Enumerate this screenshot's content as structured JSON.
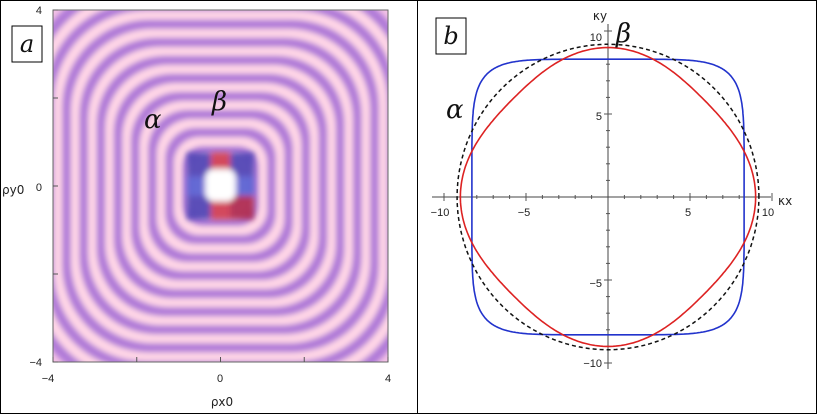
{
  "chart_data": [
    {
      "type": "heatmap",
      "panel_label": "a",
      "xlabel": "ρx0",
      "ylabel": "ρy0",
      "xlim": [
        -4,
        4
      ],
      "ylim": [
        -4,
        4
      ],
      "x_ticks": [
        "−4",
        "0",
        "4"
      ],
      "y_ticks": [
        "4",
        "0",
        "−4"
      ],
      "annotations": [
        "α",
        "β"
      ],
      "grid": false,
      "colors": {
        "low": "#b07ad8",
        "high": "#ffd6e6",
        "mid": "#f0a4d8",
        "core_red": "#c8283c",
        "core_blue": "#3d4fd0"
      }
    },
    {
      "type": "line",
      "panel_label": "b",
      "xlabel": "κx",
      "ylabel": "κy",
      "xlim": [
        -10,
        10
      ],
      "ylim": [
        -10,
        10
      ],
      "x_ticks": [
        -10,
        -5,
        5,
        10
      ],
      "y_ticks": [
        -10,
        -5,
        5,
        10
      ],
      "x_tick_labels": [
        "−10",
        "−5",
        "5",
        "10"
      ],
      "y_tick_labels": [
        "−10",
        "−5",
        "5",
        "10"
      ],
      "annotations": [
        "α",
        "β"
      ],
      "grid": false,
      "series": [
        {
          "style": "superellipse",
          "radius": 8.3,
          "exponent": 6,
          "color": "#2233cc"
        },
        {
          "style": "rounded-diamond",
          "radius": 9.0,
          "modulation": 0.08,
          "color": "#dd2222"
        },
        {
          "style": "circle-dashed",
          "radius": 9.2,
          "color": "#111111"
        }
      ]
    }
  ]
}
